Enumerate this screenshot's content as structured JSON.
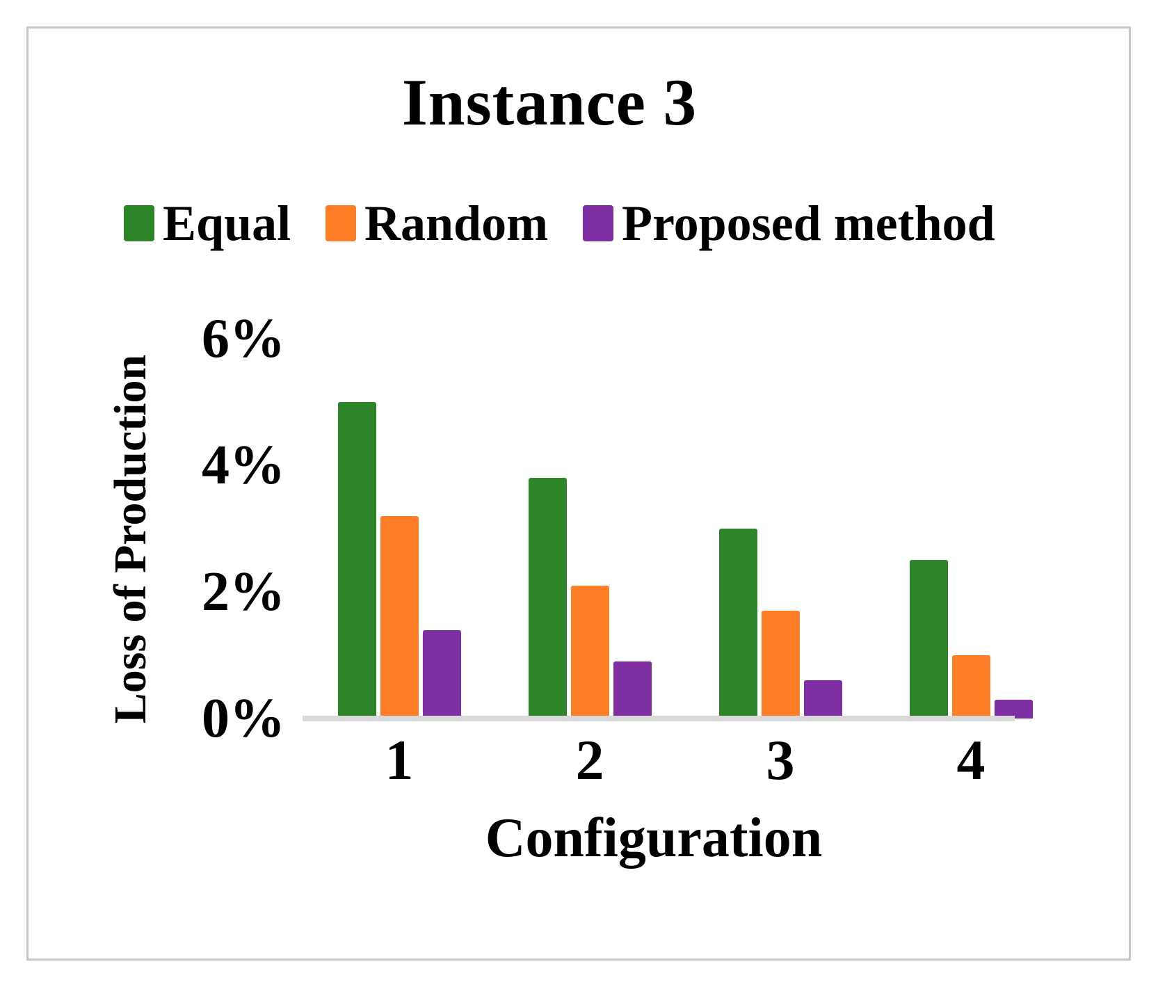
{
  "figure": {
    "title": "Instance 3"
  },
  "chart_data": {
    "type": "bar",
    "title": "Instance 3",
    "xlabel": "Configuration",
    "ylabel": "Loss of Production",
    "categories": [
      "1",
      "2",
      "3",
      "4"
    ],
    "series": [
      {
        "name": "Equal",
        "color": "#2E8428",
        "values": [
          5.0,
          3.8,
          3.0,
          2.5
        ]
      },
      {
        "name": "Random",
        "color": "#FD7E27",
        "values": [
          3.2,
          2.1,
          1.7,
          1.0
        ]
      },
      {
        "name": "Proposed method",
        "color": "#7D2FA3",
        "values": [
          1.4,
          0.9,
          0.6,
          0.3
        ]
      }
    ],
    "ylim": [
      0,
      6
    ],
    "ytick_labels": [
      "0%",
      "2%",
      "4%",
      "6%"
    ],
    "ytick_values": [
      0,
      2,
      4,
      6
    ],
    "grid": false,
    "legend_position": "top"
  },
  "colors": {
    "axis_line": "#D9D9D9",
    "frame_border": "#C9C9C9",
    "text": "#000000",
    "background": "#FFFFFF"
  }
}
